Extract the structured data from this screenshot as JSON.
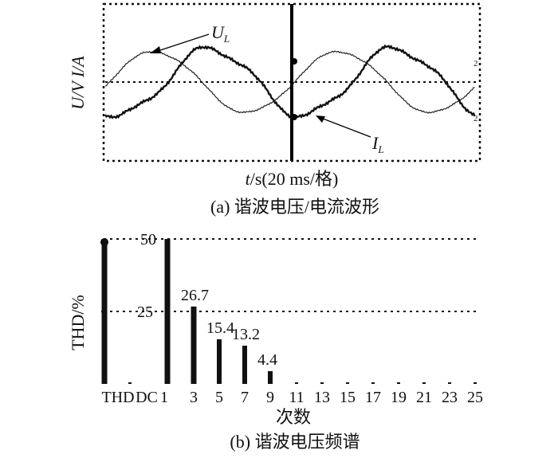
{
  "chart_data": [
    {
      "type": "line",
      "panel": "(a)",
      "caption": "(a) 谐波电压/电流波形",
      "xlabel_var": "t",
      "xlabel_rest": "/s(20 ms/格)",
      "ylabel": "U/V  I/A",
      "series": [
        {
          "name": "U_L",
          "label_main": "U",
          "label_sub": "L"
        },
        {
          "name": "I_L",
          "label_main": "I",
          "label_sub": "L"
        }
      ],
      "grid": true
    },
    {
      "type": "bar",
      "panel": "(b)",
      "caption": "(b) 谐波电压频谱",
      "xlabel": "次数",
      "ylabel": "THD/%",
      "yticks": [
        "25",
        "50"
      ],
      "ylim": [
        0,
        50
      ],
      "categories": [
        "THD",
        "DC",
        "1",
        "3",
        "5",
        "7",
        "9",
        "11",
        "13",
        "15",
        "17",
        "19",
        "21",
        "23",
        "25"
      ],
      "values": [
        50,
        0,
        50,
        26.7,
        15.4,
        13.2,
        4.4,
        0,
        0,
        0,
        0,
        0,
        0,
        0,
        0
      ],
      "data_labels": [
        "",
        "",
        "",
        "26.7",
        "15.4",
        "13.2",
        "4.4",
        "",
        "",
        "",
        "",
        "",
        "",
        "",
        ""
      ],
      "grid": true
    }
  ]
}
